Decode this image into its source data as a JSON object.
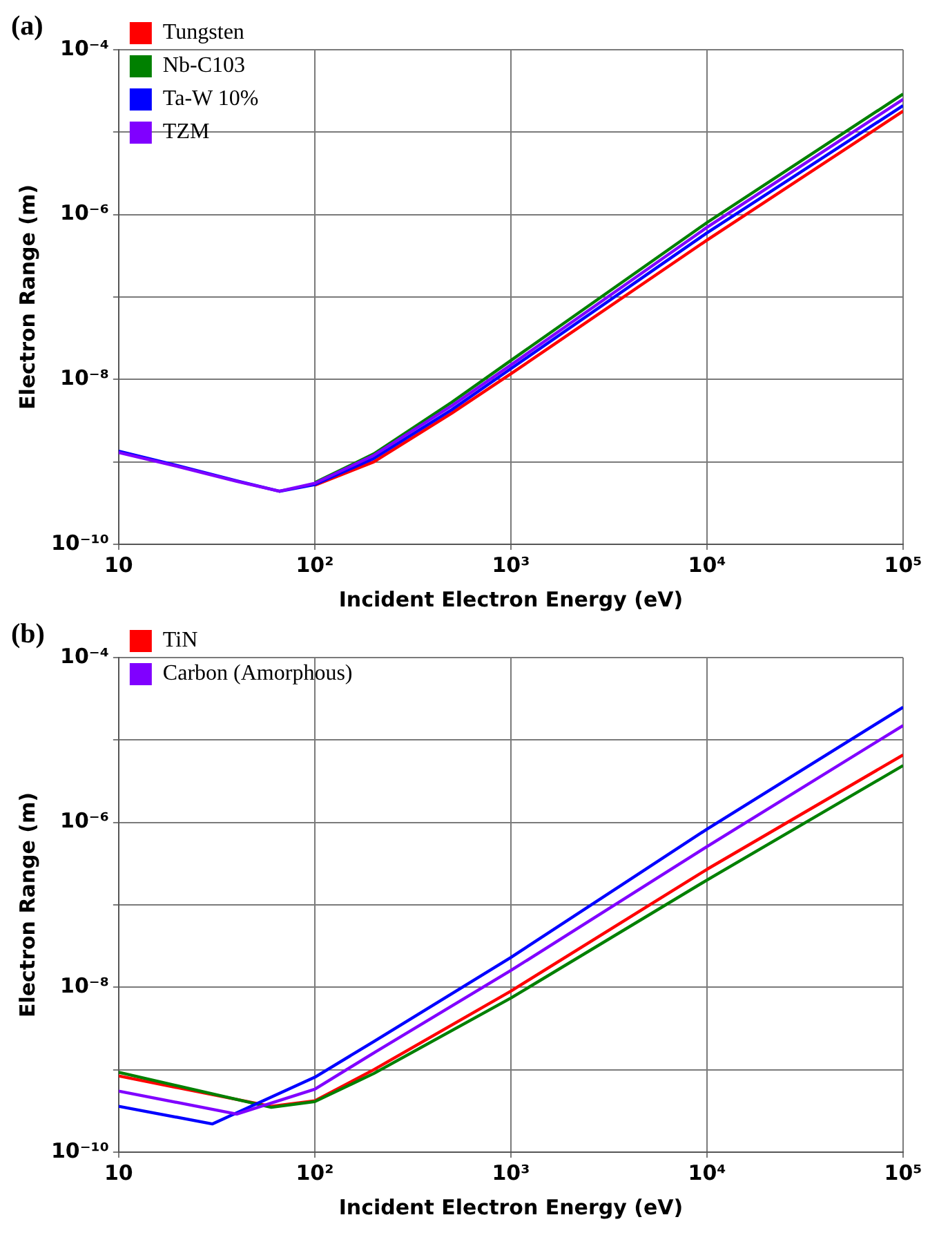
{
  "chart_data": [
    {
      "type": "line",
      "title": "(a)",
      "xlabel": "Incident Electron Energy (eV)",
      "ylabel": "Electron Range (m)",
      "log": "xy",
      "grid": true,
      "legend": "top left",
      "marker": "none",
      "line_style": "solid",
      "x": [
        10,
        20,
        40,
        66,
        100,
        200,
        500,
        1000,
        10000,
        100000
      ],
      "xlim": [
        10,
        100000
      ],
      "xticks": [
        {
          "value": 10,
          "label": "10"
        },
        {
          "value": 100,
          "label": "10²"
        },
        {
          "value": 1000,
          "label": "10³"
        },
        {
          "value": 10000,
          "label": "10⁴"
        },
        {
          "value": 100000,
          "label": "10⁵"
        }
      ],
      "ylim": [
        1e-10,
        0.0001
      ],
      "yticks": [
        {
          "value": 1e-10,
          "label": "10⁻¹⁰"
        },
        {
          "value": 1e-09,
          "label": null
        },
        {
          "value": 1e-08,
          "label": "10⁻⁸"
        },
        {
          "value": 1e-07,
          "label": null
        },
        {
          "value": 1e-06,
          "label": "10⁻⁶"
        },
        {
          "value": 1e-05,
          "label": null
        },
        {
          "value": 0.0001,
          "label": "10⁻⁴"
        }
      ],
      "series": [
        {
          "name": "Tungsten",
          "color": "#ff0000",
          "values": [
            null,
            null,
            null,
            null,
            5.2e-10,
            1e-09,
            3.9e-09,
            1.17e-08,
            4.9e-07,
            1.8e-05
          ]
        },
        {
          "name": "Nb-C103",
          "color": "#008000",
          "values": [
            null,
            null,
            null,
            null,
            5.6e-10,
            1.25e-09,
            5.3e-09,
            1.7e-08,
            8e-07,
            2.9e-05
          ]
        },
        {
          "name": "Ta-W 10%",
          "color": "#0000ff",
          "values": [
            1.35e-09,
            9e-10,
            5.9e-10,
            4.4e-10,
            5.3e-10,
            1.1e-09,
            4.3e-09,
            1.35e-08,
            6e-07,
            2.1e-05
          ]
        },
        {
          "name": "TZM",
          "color": "#8000ff",
          "values": [
            1.3e-09,
            8.8e-10,
            5.8e-10,
            4.4e-10,
            5.5e-10,
            1.2e-09,
            4.8e-09,
            1.5e-08,
            7e-07,
            2.5e-05
          ]
        }
      ]
    },
    {
      "type": "line",
      "title": "(b)",
      "xlabel": "Incident Electron Energy (eV)",
      "ylabel": "Electron Range (m)",
      "log": "xy",
      "grid": true,
      "legend": "top left",
      "marker": "none",
      "line_style": "solid",
      "xlim": [
        10,
        100000
      ],
      "xticks": [
        {
          "value": 10,
          "label": "10"
        },
        {
          "value": 100,
          "label": "10²"
        },
        {
          "value": 1000,
          "label": "10³"
        },
        {
          "value": 10000,
          "label": "10⁴"
        },
        {
          "value": 100000,
          "label": "10⁵"
        }
      ],
      "ylim": [
        1e-10,
        0.0001
      ],
      "yticks": [
        {
          "value": 1e-10,
          "label": "10⁻¹⁰"
        },
        {
          "value": 1e-09,
          "label": null
        },
        {
          "value": 1e-08,
          "label": "10⁻⁸"
        },
        {
          "value": 1e-07,
          "label": null
        },
        {
          "value": 1e-06,
          "label": "10⁻⁶"
        },
        {
          "value": 1e-05,
          "label": null
        },
        {
          "value": 0.0001,
          "label": "10⁻⁴"
        }
      ],
      "series": [
        {
          "name": "TiN",
          "color": "#ff0000",
          "x": [
            10,
            60,
            100,
            200,
            1000,
            10000,
            100000
          ],
          "values": [
            8.4e-10,
            3.6e-10,
            4.2e-10,
            1e-09,
            9e-09,
            2.7e-07,
            6.6e-06
          ]
        },
        {
          "color": "#008000",
          "x": [
            10,
            60,
            100,
            200,
            1000,
            10000,
            100000
          ],
          "values": [
            9.3e-10,
            3.5e-10,
            4.1e-10,
            9e-10,
            7.4e-09,
            2e-07,
            4.9e-06
          ]
        },
        {
          "color": "#0000ff",
          "x": [
            10,
            30,
            100,
            200,
            1000,
            10000,
            100000
          ],
          "values": [
            3.6e-10,
            2.2e-10,
            8.1e-10,
            2.2e-09,
            2.3e-08,
            8.3e-07,
            2.5e-05
          ]
        },
        {
          "name": "Carbon (Amorphous)",
          "color": "#8000ff",
          "x": [
            10,
            40,
            100,
            200,
            1000,
            10000,
            100000
          ],
          "values": [
            5.5e-10,
            2.9e-10,
            5.8e-10,
            1.6e-09,
            1.6e-08,
            5.1e-07,
            1.5e-05
          ]
        }
      ]
    }
  ]
}
